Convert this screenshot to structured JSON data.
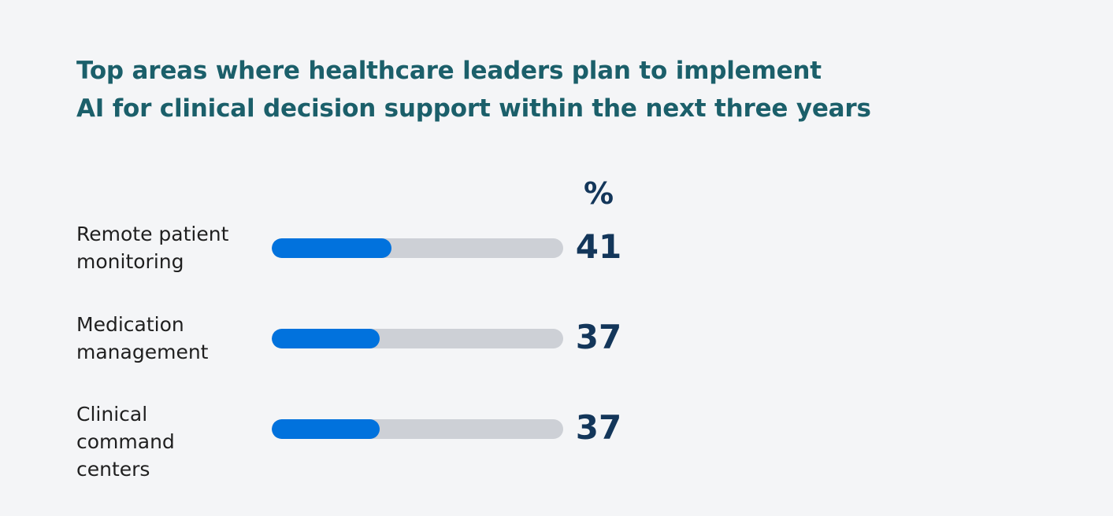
{
  "chart_data": {
    "type": "bar",
    "title": "Top areas where healthcare leaders plan to implement AI for clinical decision support within the next three years",
    "title_lines": [
      "Top areas where healthcare leaders plan to implement",
      "AI for clinical decision support within the next three years"
    ],
    "unit_label": "%",
    "categories": [
      "Remote patient monitoring",
      "Medication management",
      "Clinical command centers"
    ],
    "category_lines": [
      [
        "Remote patient",
        "monitoring"
      ],
      [
        "Medication",
        "management"
      ],
      [
        "Clinical",
        "command",
        "centers"
      ]
    ],
    "values": [
      41,
      37,
      37
    ],
    "xlim": [
      0,
      100
    ],
    "orientation": "horizontal",
    "colors": {
      "fill": "#0172dd",
      "track": "#cdd0d6",
      "title": "#1b5f6a",
      "value": "#13365a"
    }
  }
}
